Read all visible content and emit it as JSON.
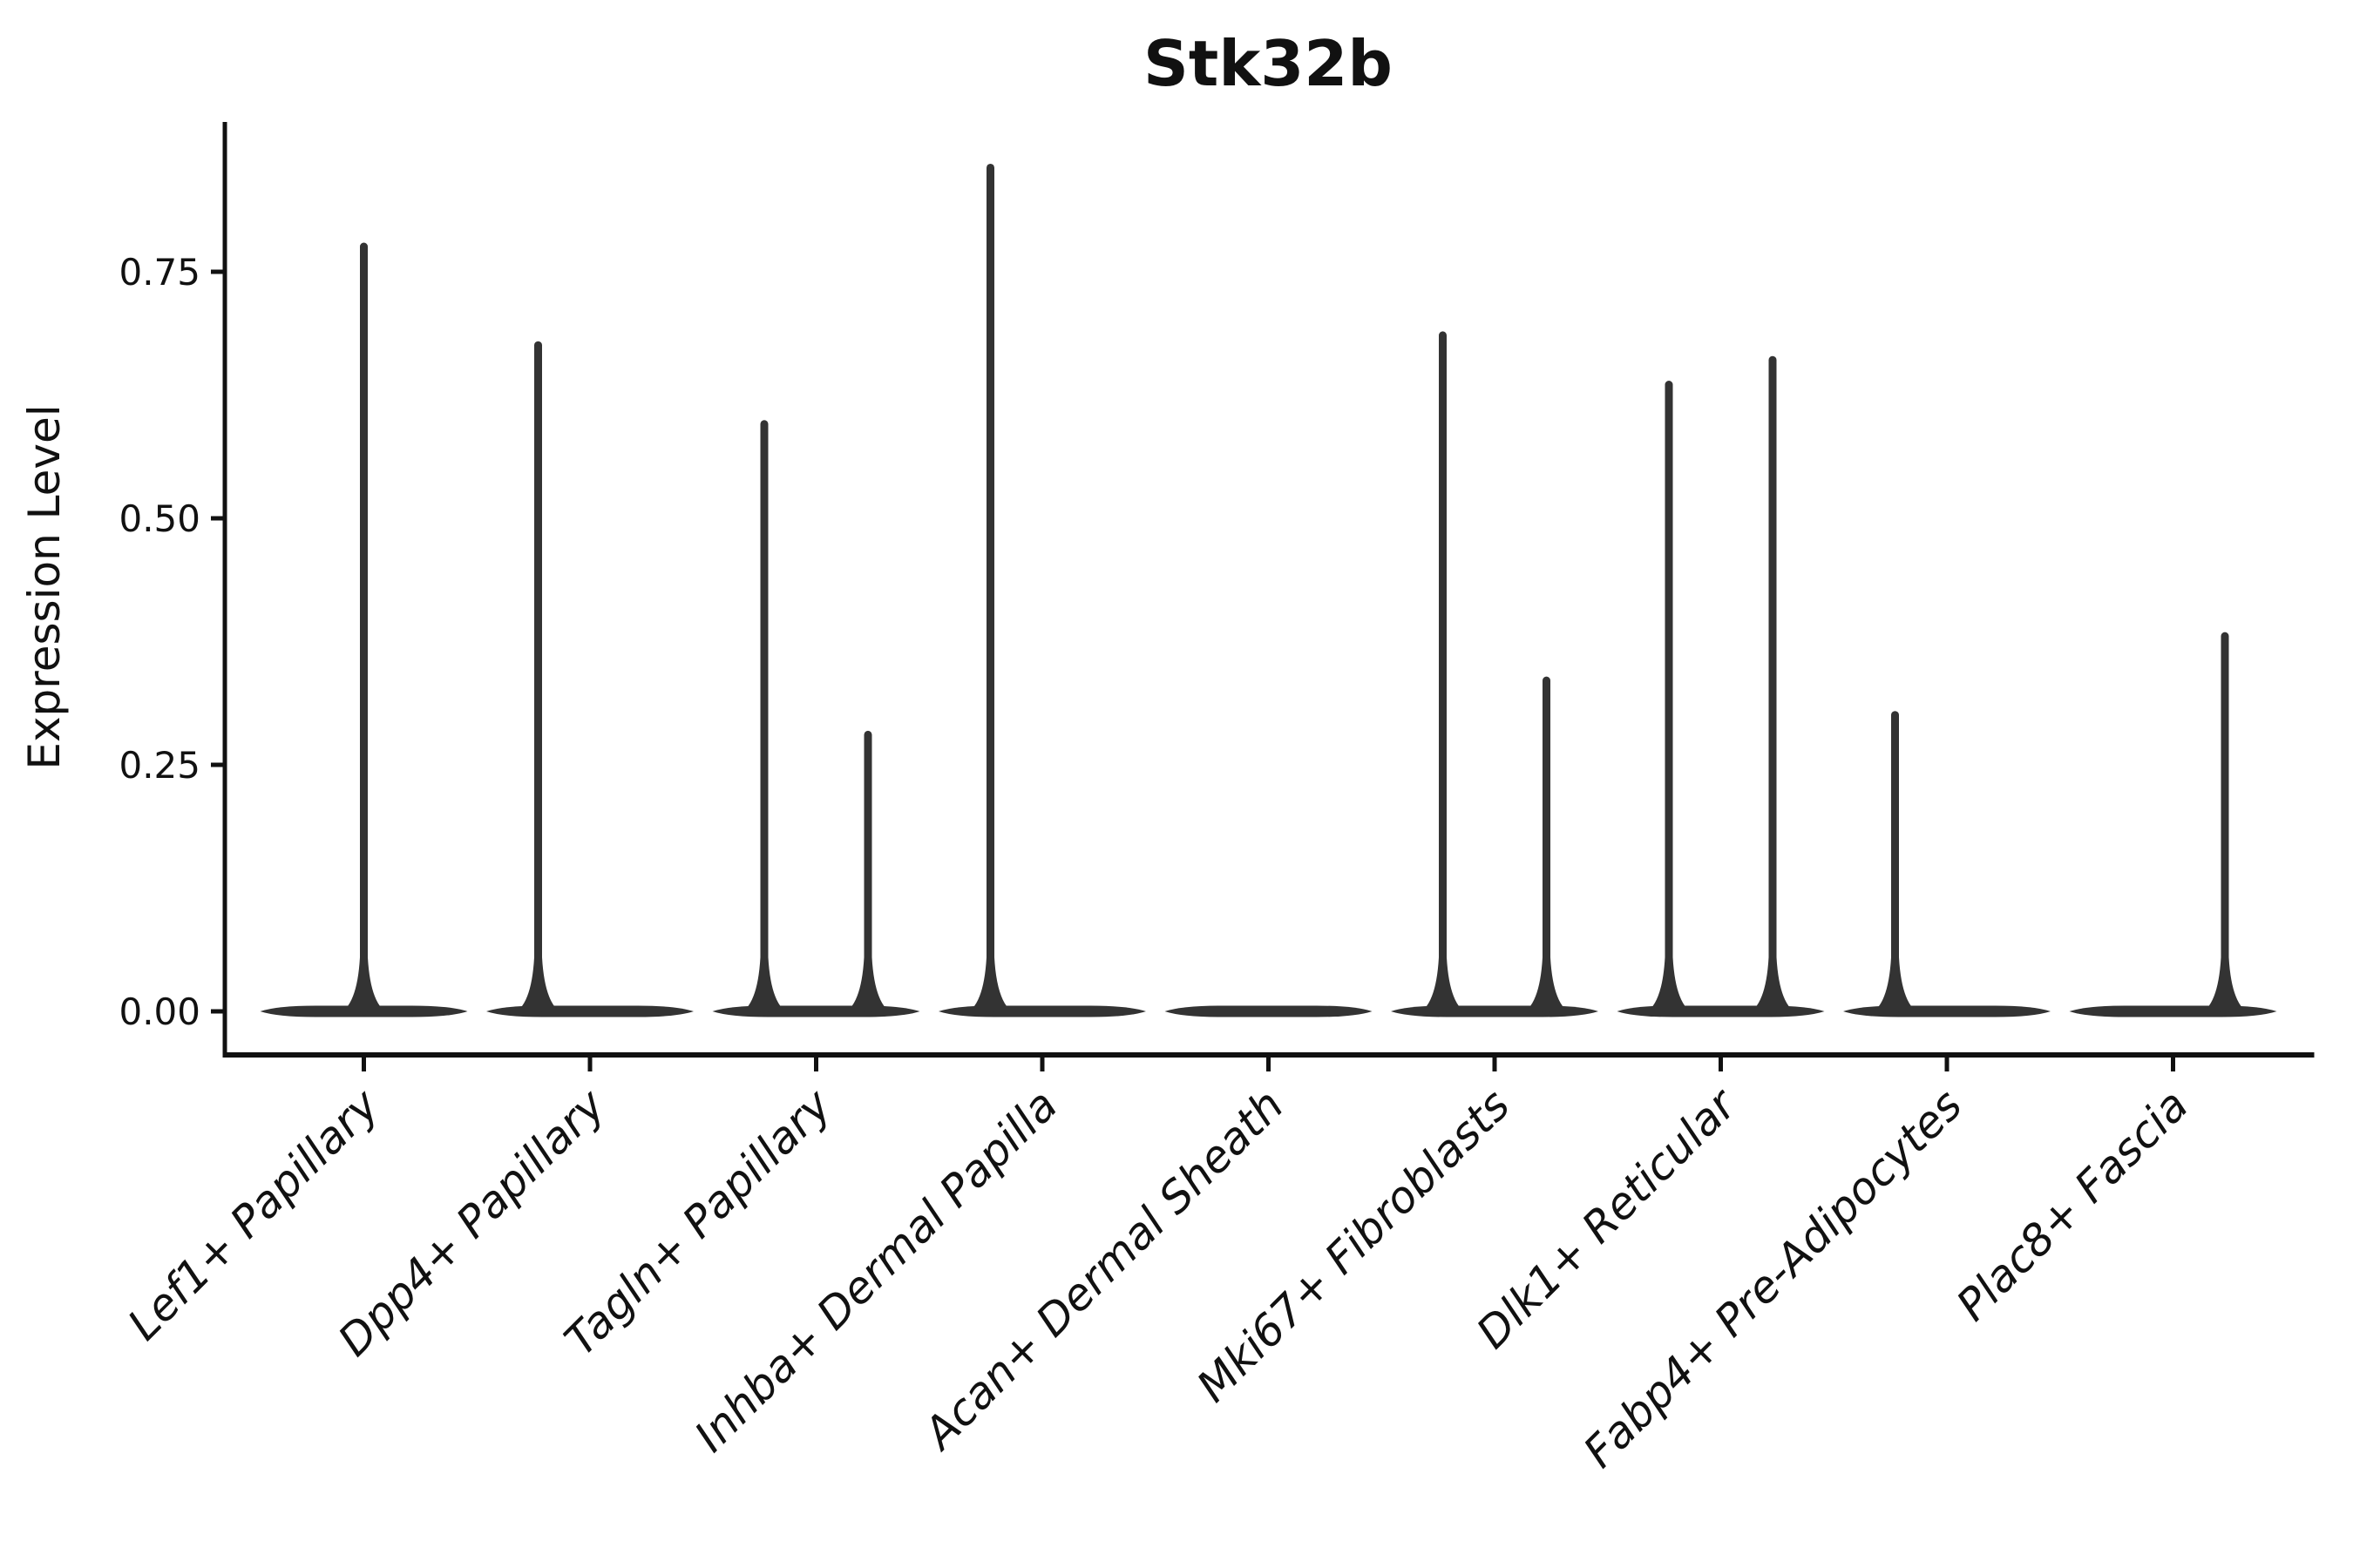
{
  "figure": {
    "title": "Stk32b",
    "background": "#ffffff",
    "axis_color": "#111111",
    "violin_color": "#333333"
  },
  "chart_data": {
    "type": "violin",
    "title": "Stk32b",
    "xlabel": "",
    "ylabel": "Expression Level",
    "yticks": [
      0.0,
      0.25,
      0.5,
      0.75
    ],
    "ytick_labels": [
      "0.00",
      "0.25",
      "0.50",
      "0.75"
    ],
    "ylim": [
      -0.042,
      0.902
    ],
    "grid": false,
    "legend": null,
    "categories": [
      "Lef1+ Papillary",
      "Dpp4+ Papillary",
      "Tagln+ Papillary",
      "Inhba+ Dermal Papilla",
      "Acan+ Dermal Sheath",
      "Mki67+ Fibroblasts",
      "Dlk1+ Reticular",
      "Fabp4+ Pre-Adipocytes",
      "Plac8+ Fascia"
    ],
    "violins": [
      {
        "category": "Lef1+ Papillary",
        "groups": [
          {
            "position": "center",
            "max_expression": 0.78
          }
        ]
      },
      {
        "category": "Dpp4+ Papillary",
        "groups": [
          {
            "position": "left",
            "max_expression": 0.68
          },
          {
            "position": "right",
            "max_expression": 0
          }
        ]
      },
      {
        "category": "Tagln+ Papillary",
        "groups": [
          {
            "position": "left",
            "max_expression": 0.6
          },
          {
            "position": "right",
            "max_expression": 0.285
          }
        ]
      },
      {
        "category": "Inhba+ Dermal Papilla",
        "groups": [
          {
            "position": "left",
            "max_expression": 0.86
          },
          {
            "position": "right",
            "max_expression": 0
          }
        ]
      },
      {
        "category": "Acan+ Dermal Sheath",
        "groups": [
          {
            "position": "left",
            "max_expression": 0
          },
          {
            "position": "right",
            "max_expression": 0
          }
        ]
      },
      {
        "category": "Mki67+ Fibroblasts",
        "groups": [
          {
            "position": "left",
            "max_expression": 0.69
          },
          {
            "position": "right",
            "max_expression": 0.34
          }
        ]
      },
      {
        "category": "Dlk1+ Reticular",
        "groups": [
          {
            "position": "left",
            "max_expression": 0.64
          },
          {
            "position": "right",
            "max_expression": 0.665
          }
        ]
      },
      {
        "category": "Fabp4+ Pre-Adipocytes",
        "groups": [
          {
            "position": "left",
            "max_expression": 0.305
          },
          {
            "position": "right",
            "max_expression": 0
          }
        ]
      },
      {
        "category": "Plac8+ Fascia",
        "groups": [
          {
            "position": "left",
            "max_expression": 0
          },
          {
            "position": "right",
            "max_expression": 0.385
          }
        ]
      }
    ]
  }
}
